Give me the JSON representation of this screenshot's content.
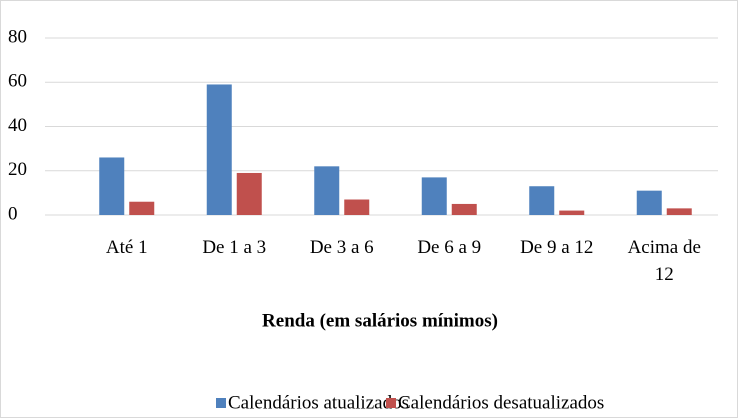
{
  "chart_data": {
    "type": "bar",
    "x_label": "Renda (em salários mínimos)",
    "categories": [
      "Até 1",
      "De 1 a 3",
      "De 3 a 6",
      "De 6 a 9",
      "De 9 a 12",
      "Acima de 12"
    ],
    "series": [
      {
        "name": "Calendários atualizados",
        "color": "#4f81bd",
        "values": [
          26,
          59,
          22,
          17,
          13,
          11
        ]
      },
      {
        "name": "Calendários desatualizados",
        "color": "#c0504d",
        "values": [
          6,
          19,
          7,
          5,
          2,
          3
        ]
      }
    ],
    "ylim": [
      0,
      80
    ],
    "yticks": [
      0,
      20,
      40,
      60,
      80
    ],
    "grid": true,
    "legend": "bottom"
  }
}
